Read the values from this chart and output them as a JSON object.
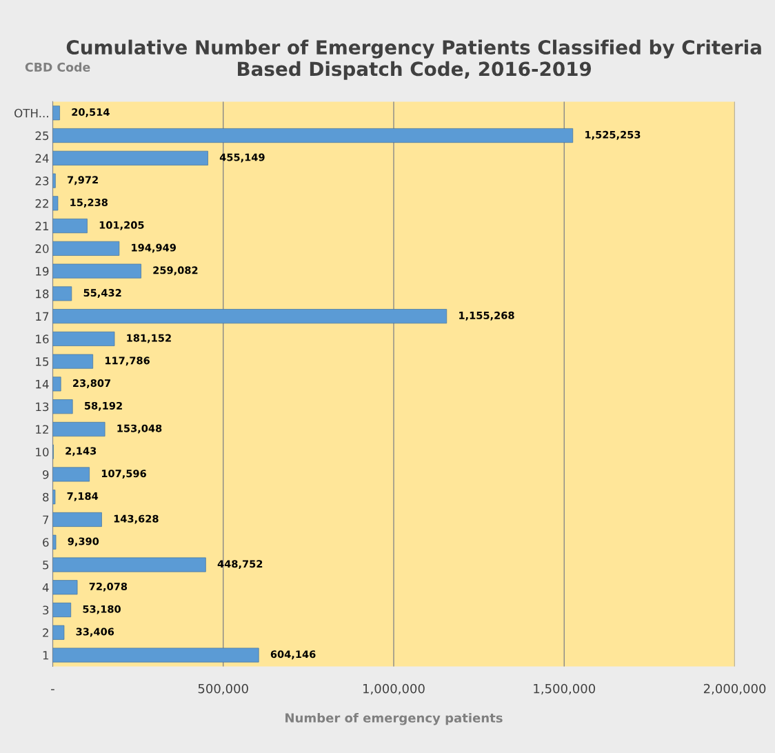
{
  "chart_data": {
    "type": "bar",
    "orientation": "horizontal",
    "title": "Cumulative Number of Emergency Patients Classified by Criteria Based Dispatch Code, 2016-2019",
    "xlabel": "Number of emergency patients",
    "ylabel": "CBD Code",
    "categories": [
      "OTH...",
      "25",
      "24",
      "23",
      "22",
      "21",
      "20",
      "19",
      "18",
      "17",
      "16",
      "15",
      "14",
      "13",
      "12",
      "10",
      "9",
      "8",
      "7",
      "6",
      "5",
      "4",
      "3",
      "2",
      "1"
    ],
    "values": [
      20514,
      1525253,
      455149,
      7972,
      15238,
      101205,
      194949,
      259082,
      55432,
      1155268,
      181152,
      117786,
      23807,
      58192,
      153048,
      2143,
      107596,
      7184,
      143628,
      9390,
      448752,
      72078,
      53180,
      33406,
      604146
    ],
    "value_labels": [
      "20,514",
      "1,525,253",
      "455,149",
      "7,972",
      "15,238",
      "101,205",
      "194,949",
      "259,082",
      "55,432",
      "1,155,268",
      "181,152",
      "117,786",
      "23,807",
      "58,192",
      "153,048",
      "2,143",
      "107,596",
      "7,184",
      "143,628",
      "9,390",
      "448,752",
      "72,078",
      "53,180",
      "33,406",
      "604,146"
    ],
    "color": "#5b9bd5",
    "xlim": [
      0,
      2000000
    ],
    "xticks": [
      {
        "value": 0,
        "label": "-"
      },
      {
        "value": 500000,
        "label": "500,000"
      },
      {
        "value": 1000000,
        "label": "1,000,000"
      },
      {
        "value": 1500000,
        "label": "1,500,000"
      },
      {
        "value": 2000000,
        "label": "2,000,000"
      }
    ],
    "grid": "x"
  }
}
